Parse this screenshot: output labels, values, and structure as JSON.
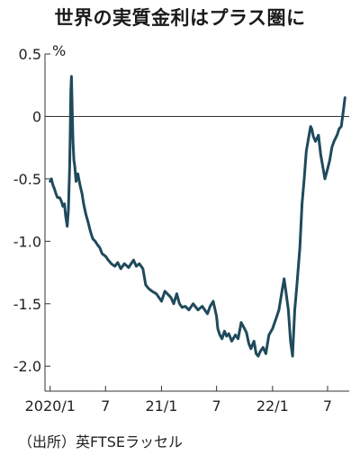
{
  "chart_data": {
    "type": "line",
    "title": "世界の実質金利はプラス圏に",
    "ylabel": "%",
    "ylim": [
      -2.2,
      0.5
    ],
    "yticks": [
      0.5,
      0,
      -0.5,
      -1.0,
      -1.5,
      -2.0
    ],
    "ytick_labels": [
      "0.5",
      "0",
      "-0.5",
      "-1.0",
      "-1.5",
      "-2.0"
    ],
    "x_range": [
      "2019-12-15",
      "2022-09-10"
    ],
    "xticks": [
      "2020-01-01",
      "2020-07-01",
      "2021-01-01",
      "2021-07-01",
      "2022-01-01",
      "2022-07-01"
    ],
    "xtick_labels": [
      "2020/1",
      "7",
      "21/1",
      "7",
      "22/1",
      "7"
    ],
    "reference_line": 0,
    "line_color": "#1f4a5c",
    "series": [
      {
        "x": [
          "2020-01-01",
          "2020-01-05",
          "2020-01-10",
          "2020-01-15",
          "2020-01-20",
          "2020-01-25",
          "2020-02-01",
          "2020-02-07",
          "2020-02-12",
          "2020-02-17",
          "2020-02-21",
          "2020-02-26",
          "2020-03-01",
          "2020-03-05",
          "2020-03-07",
          "2020-03-09",
          "2020-03-11",
          "2020-03-13",
          "2020-03-16",
          "2020-03-19",
          "2020-03-22",
          "2020-03-26",
          "2020-04-01",
          "2020-04-08",
          "2020-04-15",
          "2020-04-20",
          "2020-04-27",
          "2020-05-05",
          "2020-05-12",
          "2020-05-20",
          "2020-05-28",
          "2020-06-05",
          "2020-06-12",
          "2020-06-20",
          "2020-07-01",
          "2020-07-10",
          "2020-07-20",
          "2020-08-01",
          "2020-08-10",
          "2020-08-20",
          "2020-09-01",
          "2020-09-15",
          "2020-10-01",
          "2020-10-10",
          "2020-10-20",
          "2020-11-01",
          "2020-11-10",
          "2020-11-20",
          "2020-12-01",
          "2020-12-15",
          "2021-01-01",
          "2021-01-12",
          "2021-01-20",
          "2021-02-01",
          "2021-02-10",
          "2021-02-20",
          "2021-03-01",
          "2021-03-10",
          "2021-03-20",
          "2021-04-01",
          "2021-04-15",
          "2021-05-01",
          "2021-05-15",
          "2021-06-01",
          "2021-06-10",
          "2021-06-20",
          "2021-07-01",
          "2021-07-05",
          "2021-07-12",
          "2021-07-19",
          "2021-07-27",
          "2021-08-03",
          "2021-08-10",
          "2021-08-20",
          "2021-09-01",
          "2021-09-10",
          "2021-09-20",
          "2021-10-01",
          "2021-10-07",
          "2021-10-15",
          "2021-10-22",
          "2021-11-01",
          "2021-11-08",
          "2021-11-15",
          "2021-11-22",
          "2021-12-01",
          "2021-12-10",
          "2021-12-20",
          "2022-01-01",
          "2022-01-08",
          "2022-01-15",
          "2022-01-22",
          "2022-02-01",
          "2022-02-08",
          "2022-02-15",
          "2022-02-22",
          "2022-03-01",
          "2022-03-08",
          "2022-03-10",
          "2022-03-15",
          "2022-03-22",
          "2022-04-01",
          "2022-04-08",
          "2022-04-15",
          "2022-04-22",
          "2022-05-01",
          "2022-05-06",
          "2022-05-10",
          "2022-05-15",
          "2022-05-22",
          "2022-06-01",
          "2022-06-08",
          "2022-06-15",
          "2022-06-22",
          "2022-07-01",
          "2022-07-08",
          "2022-07-15",
          "2022-07-22",
          "2022-08-01",
          "2022-08-08",
          "2022-08-15",
          "2022-08-22",
          "2022-08-27"
        ],
        "values": [
          -0.52,
          -0.5,
          -0.55,
          -0.58,
          -0.62,
          -0.65,
          -0.65,
          -0.68,
          -0.72,
          -0.7,
          -0.8,
          -0.88,
          -0.75,
          -0.4,
          -0.1,
          0.2,
          0.32,
          0.1,
          -0.2,
          -0.35,
          -0.4,
          -0.52,
          -0.46,
          -0.55,
          -0.62,
          -0.7,
          -0.78,
          -0.85,
          -0.92,
          -0.98,
          -1.0,
          -1.03,
          -1.05,
          -1.1,
          -1.12,
          -1.15,
          -1.18,
          -1.2,
          -1.17,
          -1.22,
          -1.18,
          -1.21,
          -1.15,
          -1.2,
          -1.18,
          -1.22,
          -1.35,
          -1.38,
          -1.4,
          -1.42,
          -1.48,
          -1.4,
          -1.42,
          -1.45,
          -1.5,
          -1.42,
          -1.5,
          -1.53,
          -1.52,
          -1.55,
          -1.5,
          -1.55,
          -1.52,
          -1.58,
          -1.52,
          -1.48,
          -1.6,
          -1.7,
          -1.75,
          -1.78,
          -1.72,
          -1.76,
          -1.74,
          -1.8,
          -1.75,
          -1.78,
          -1.65,
          -1.7,
          -1.73,
          -1.82,
          -1.86,
          -1.8,
          -1.9,
          -1.92,
          -1.88,
          -1.85,
          -1.9,
          -1.75,
          -1.7,
          -1.65,
          -1.6,
          -1.55,
          -1.4,
          -1.3,
          -1.42,
          -1.55,
          -1.8,
          -1.92,
          -1.8,
          -1.55,
          -1.35,
          -1.05,
          -0.7,
          -0.5,
          -0.28,
          -0.15,
          -0.08,
          -0.1,
          -0.16,
          -0.2,
          -0.15,
          -0.3,
          -0.4,
          -0.5,
          -0.42,
          -0.35,
          -0.25,
          -0.2,
          -0.15,
          -0.1,
          -0.08,
          0.05,
          0.15
        ]
      }
    ],
    "source": "（出所）英FTSEラッセル"
  }
}
